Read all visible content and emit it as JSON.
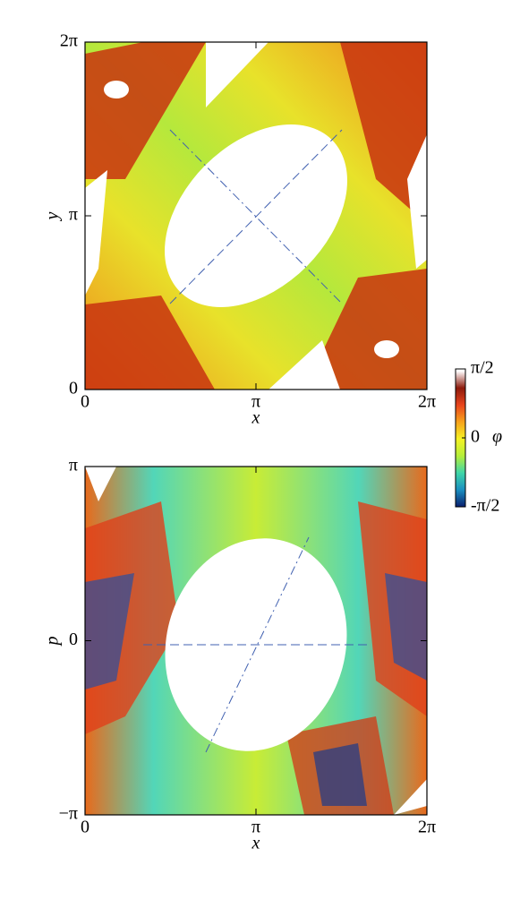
{
  "chart_data": [
    {
      "type": "heatmap",
      "xlabel": "x",
      "ylabel": "y",
      "xlim": [
        0,
        6.2832
      ],
      "ylim": [
        0,
        6.2832
      ],
      "xticks": [
        0,
        {
          "value": 3.1416,
          "label": "π"
        },
        {
          "value": 6.2832,
          "label": "2π"
        }
      ],
      "yticks": [
        0,
        {
          "value": 3.1416,
          "label": "π"
        },
        {
          "value": 6.2832,
          "label": "2π"
        }
      ]
    },
    {
      "type": "heatmap",
      "xlabel": "x",
      "ylabel": "p",
      "xlim": [
        0,
        6.2832
      ],
      "ylim": [
        -3.1416,
        3.1416
      ],
      "xticks": [
        0,
        {
          "value": 3.1416,
          "label": "π"
        },
        {
          "value": 6.2832,
          "label": "2π"
        }
      ],
      "yticks": [
        {
          "value": -3.1416,
          "label": "−π"
        },
        0,
        {
          "value": 3.1416,
          "label": "π"
        }
      ]
    }
  ],
  "colorbar": {
    "label": "φ",
    "lim": [
      -1.5708,
      1.5708
    ],
    "ticks": [
      {
        "value": -1.5708,
        "label": "-π/2"
      },
      0,
      {
        "value": 1.5708,
        "label": "π/2"
      }
    ],
    "colors": [
      "#0a1f6e",
      "#1a8fc0",
      "#3fd6a8",
      "#b6ef3a",
      "#f5f224",
      "#f7a21b",
      "#e8441c",
      "#8c1a0c",
      "#ffffff"
    ]
  }
}
